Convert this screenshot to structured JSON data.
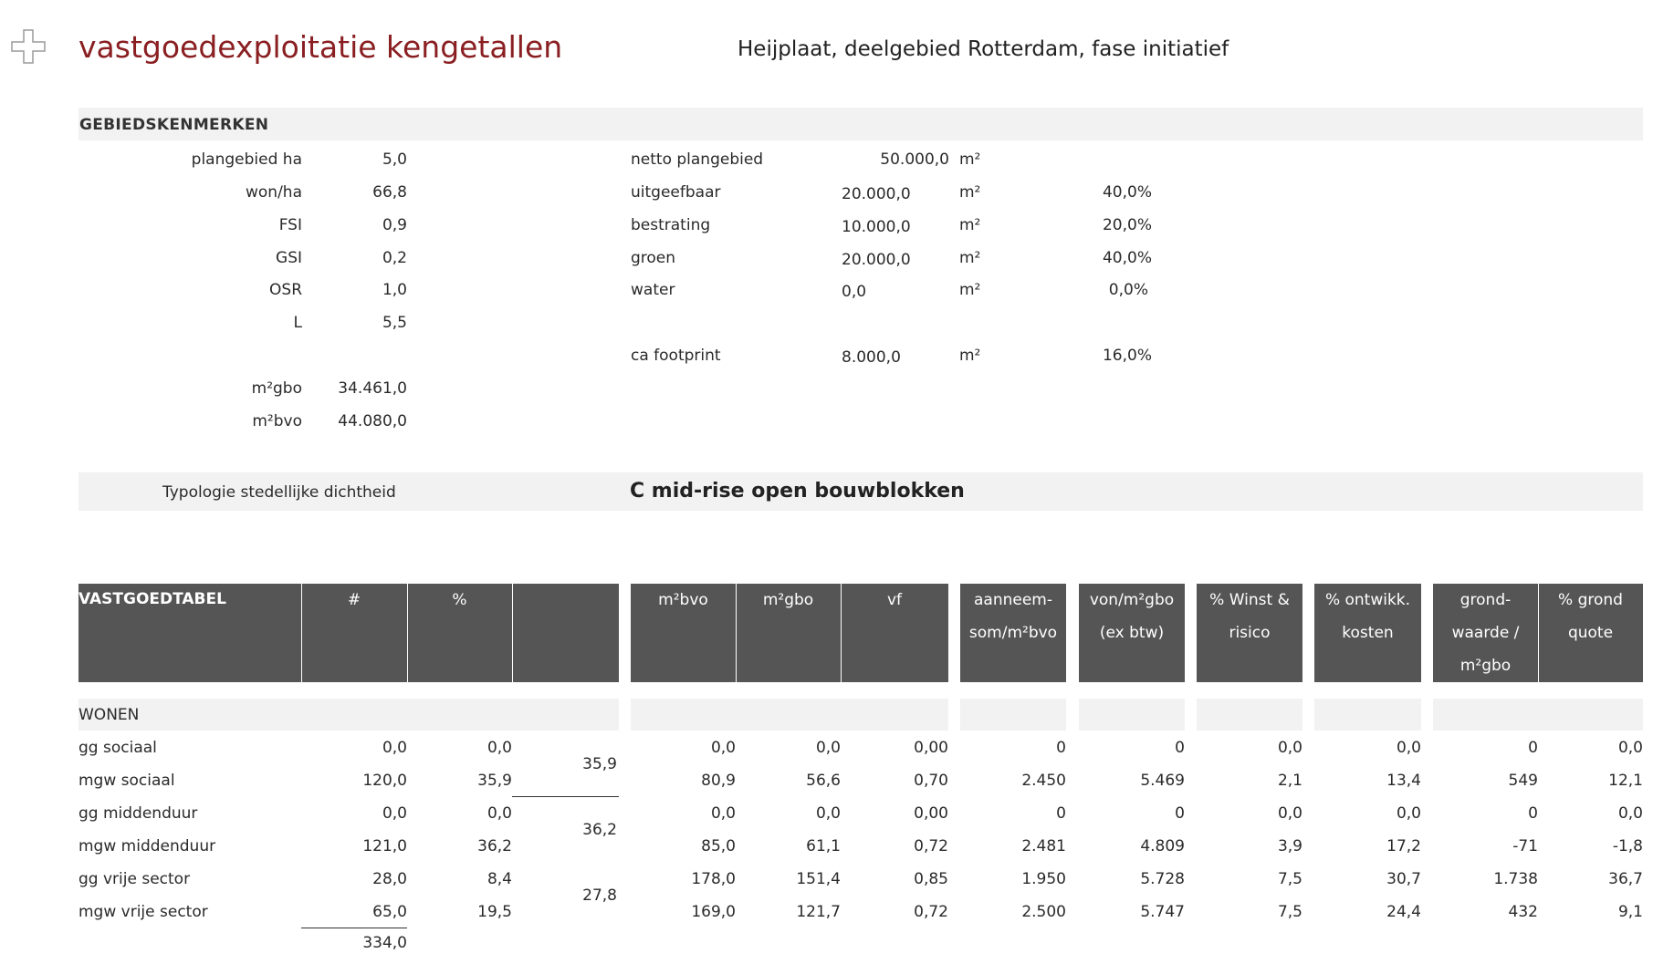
{
  "header": {
    "title": "vastgoedexploitatie kengetallen",
    "subtitle": "Heijplaat, deelgebied Rotterdam, fase initiatief"
  },
  "gebied": {
    "section_title": "GEBIEDSKENMERKEN",
    "left": [
      {
        "label": "plangebied ha",
        "value": "5,0"
      },
      {
        "label": "won/ha",
        "value": "66,8"
      },
      {
        "label": "FSI",
        "value": "0,9"
      },
      {
        "label": "GSI",
        "value": "0,2"
      },
      {
        "label": "OSR",
        "value": "1,0"
      },
      {
        "label": "L",
        "value": "5,5"
      }
    ],
    "left2": [
      {
        "label": "m²gbo",
        "value": "34.461,0"
      },
      {
        "label": "m²bvo",
        "value": "44.080,0"
      }
    ],
    "netto": {
      "label": "netto plangebied",
      "value": "50.000,0",
      "unit": "m²"
    },
    "right": [
      {
        "label": "uitgeefbaar",
        "value": "20.000,0",
        "unit": "m²",
        "pct": "40,0%"
      },
      {
        "label": "bestrating",
        "value": "10.000,0",
        "unit": "m²",
        "pct": "20,0%"
      },
      {
        "label": "groen",
        "value": "20.000,0",
        "unit": "m²",
        "pct": "40,0%"
      },
      {
        "label": "water",
        "value": "0,0",
        "unit": "m²",
        "pct": "0,0%"
      }
    ],
    "footprint": {
      "label": "ca footprint",
      "value": "8.000,0",
      "unit": "m²",
      "pct": "16,0%"
    }
  },
  "typologie": {
    "label": "Typologie stedellijke dichtheid",
    "value": "C mid-rise open bouwblokken"
  },
  "table": {
    "header": {
      "title": "VASTGOEDTABEL",
      "count": "#",
      "pct": "%",
      "bvo": "m²bvo",
      "gbo": "m²gbo",
      "vf": "vf",
      "aanneem": "aanneem- som/m²bvo",
      "von": "von/m²gbo (ex btw)",
      "winst": "% Winst & risico",
      "ontw": "% ontwikk. kosten",
      "grondw": "grond- waarde / m²gbo",
      "grondq": "% grond quote"
    },
    "section": "WONEN",
    "rows": [
      {
        "name": "gg sociaal",
        "count": "0,0",
        "pct": "0,0",
        "bvo": "0,0",
        "gbo": "0,0",
        "vf": "0,00",
        "aanneem": "0",
        "von": "0",
        "winst": "0,0",
        "ontw": "0,0",
        "grondw": "0",
        "grondq": "0,0"
      },
      {
        "name": "mgw sociaal",
        "count": "120,0",
        "pct": "35,9",
        "bvo": "80,9",
        "gbo": "56,6",
        "vf": "0,70",
        "aanneem": "2.450",
        "von": "5.469",
        "winst": "2,1",
        "ontw": "13,4",
        "grondw": "549",
        "grondq": "12,1"
      },
      {
        "name": "gg middenduur",
        "count": "0,0",
        "pct": "0,0",
        "bvo": "0,0",
        "gbo": "0,0",
        "vf": "0,00",
        "aanneem": "0",
        "von": "0",
        "winst": "0,0",
        "ontw": "0,0",
        "grondw": "0",
        "grondq": "0,0"
      },
      {
        "name": "mgw middenduur",
        "count": "121,0",
        "pct": "36,2",
        "bvo": "85,0",
        "gbo": "61,1",
        "vf": "0,72",
        "aanneem": "2.481",
        "von": "4.809",
        "winst": "3,9",
        "ontw": "17,2",
        "grondw": "-71",
        "grondq": "-1,8"
      },
      {
        "name": "gg vrije sector",
        "count": "28,0",
        "pct": "8,4",
        "bvo": "178,0",
        "gbo": "151,4",
        "vf": "0,85",
        "aanneem": "1.950",
        "von": "5.728",
        "winst": "7,5",
        "ontw": "30,7",
        "grondw": "1.738",
        "grondq": "36,7"
      },
      {
        "name": "mgw vrije sector",
        "count": "65,0",
        "pct": "19,5",
        "bvo": "169,0",
        "gbo": "121,7",
        "vf": "0,72",
        "aanneem": "2.500",
        "von": "5.747",
        "winst": "7,5",
        "ontw": "24,4",
        "grondw": "432",
        "grondq": "9,1"
      }
    ],
    "subtotals": [
      "35,9",
      "36,2",
      "27,8"
    ],
    "total_count": "334,0"
  }
}
